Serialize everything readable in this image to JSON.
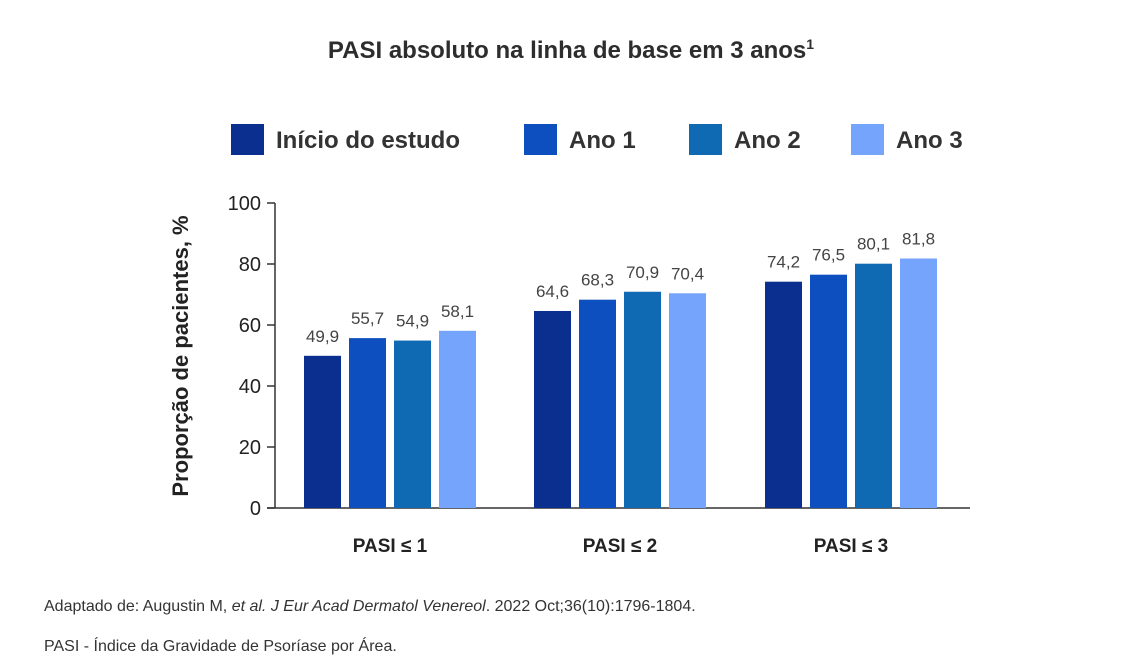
{
  "title": "PASI absoluto na linha de base em 3 anos",
  "title_sup": "1",
  "chart_data": {
    "type": "bar",
    "categories": [
      "PASI ≤ 1",
      "PASI ≤ 2",
      "PASI ≤ 3"
    ],
    "series": [
      {
        "name": "Início do estudo",
        "color": "#0a2f8f",
        "values": [
          49.9,
          64.6,
          74.2
        ],
        "labels": [
          "49,9",
          "64,6",
          "74,2"
        ]
      },
      {
        "name": "Ano 1",
        "color": "#0d4fbf",
        "values": [
          55.7,
          68.3,
          76.5
        ],
        "labels": [
          "55,7",
          "68,3",
          "76,5"
        ]
      },
      {
        "name": "Ano 2",
        "color": "#0f6ab3",
        "values": [
          54.9,
          70.9,
          80.1
        ],
        "labels": [
          "54,9",
          "70,9",
          "80,1"
        ]
      },
      {
        "name": "Ano 3",
        "color": "#74a4fb",
        "values": [
          58.1,
          70.4,
          81.8
        ],
        "labels": [
          "58,1",
          "70,4",
          "81,8"
        ]
      }
    ],
    "ylabel": "Proporção de pacientes, %",
    "xlabel": "",
    "ylim": [
      0,
      100
    ],
    "yticks": [
      0,
      20,
      40,
      60,
      80,
      100
    ],
    "legend_position": "top"
  },
  "footnotes": {
    "source_prefix": "Adaptado de: Augustin M, ",
    "source_etal": "et al.",
    "source_journal": " J Eur Acad Dermatol Venereol",
    "source_suffix": ". 2022 Oct;36(10):1796-1804.",
    "definition": "PASI - Índice da Gravidade de Psoríase por Área."
  }
}
